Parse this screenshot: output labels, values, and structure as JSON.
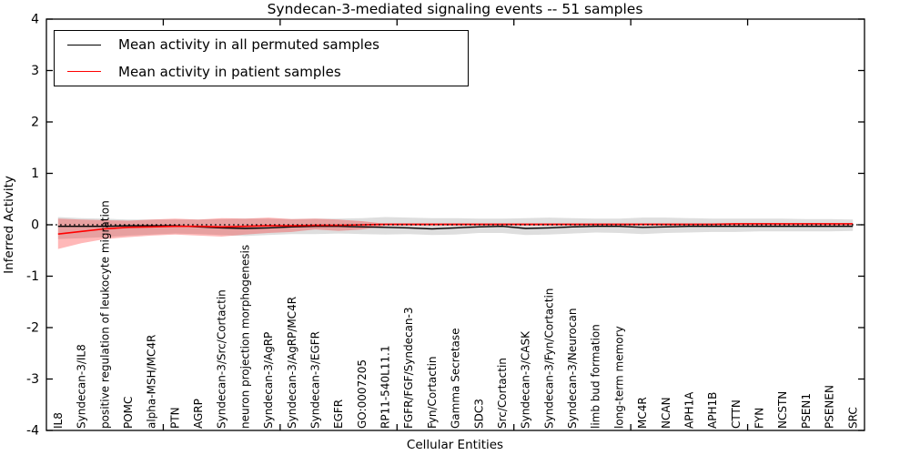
{
  "chart_data": {
    "type": "line",
    "title": "Syndecan-3-mediated signaling events -- 51 samples",
    "xlabel": "Cellular Entities",
    "ylabel": "Inferred Activity",
    "ylim": [
      -4,
      4
    ],
    "yticks": [
      -4,
      -3,
      -2,
      -1,
      0,
      1,
      2,
      3,
      4
    ],
    "xticks_unit_positions": [
      5,
      10,
      15,
      20,
      25,
      30
    ],
    "grid": false,
    "legend_position": "upper-left",
    "zero_line_style": "dotted",
    "background_color": "#ffffff",
    "categories": [
      "IL8",
      "Syndecan-3/IL8",
      "positive regulation of leukocyte migration",
      "POMC",
      "alpha-MSH/MC4R",
      "PTN",
      "AGRP",
      "Syndecan-3/Src/Cortactin",
      "neuron projection morphogenesis",
      "Syndecan-3/AgRP",
      "Syndecan-3/AgRP/MC4R",
      "Syndecan-3/EGFR",
      "EGFR",
      "GO:0007205",
      "RP11-540L11.1",
      "FGFR/FGF/Syndecan-3",
      "Fyn/Cortactin",
      "Gamma Secretase",
      "SDC3",
      "Src/Cortactin",
      "Syndecan-3/CASK",
      "Syndecan-3/Fyn/Cortactin",
      "Syndecan-3/Neurocan",
      "limb bud formation",
      "long-term memory",
      "MC4R",
      "NCAN",
      "APH1A",
      "APH1B",
      "CTTN",
      "FYN",
      "NCSTN",
      "PSEN1",
      "PSENEN",
      "SRC"
    ],
    "series": [
      {
        "name": "Mean activity in all permuted samples",
        "color": "#000000",
        "band_fill": "rgba(0,0,0,0.13)",
        "values": [
          -0.03,
          -0.03,
          -0.03,
          -0.02,
          -0.02,
          -0.02,
          -0.04,
          -0.06,
          -0.07,
          -0.06,
          -0.04,
          -0.03,
          -0.03,
          -0.04,
          -0.05,
          -0.06,
          -0.08,
          -0.06,
          -0.04,
          -0.03,
          -0.07,
          -0.06,
          -0.04,
          -0.03,
          -0.03,
          -0.05,
          -0.04,
          -0.03,
          -0.03,
          -0.03,
          -0.03,
          -0.03,
          -0.03,
          -0.03,
          -0.03
        ],
        "band_upper": [
          0.15,
          0.13,
          0.12,
          0.1,
          0.1,
          0.1,
          0.1,
          0.11,
          0.12,
          0.12,
          0.11,
          0.12,
          0.12,
          0.13,
          0.15,
          0.14,
          0.13,
          0.13,
          0.12,
          0.12,
          0.13,
          0.14,
          0.13,
          0.12,
          0.12,
          0.14,
          0.14,
          0.13,
          0.12,
          0.12,
          0.12,
          0.12,
          0.11,
          0.11,
          0.1
        ],
        "band_lower": [
          -0.28,
          -0.26,
          -0.24,
          -0.21,
          -0.19,
          -0.17,
          -0.18,
          -0.2,
          -0.22,
          -0.2,
          -0.18,
          -0.18,
          -0.17,
          -0.18,
          -0.19,
          -0.18,
          -0.2,
          -0.19,
          -0.16,
          -0.16,
          -0.2,
          -0.19,
          -0.17,
          -0.15,
          -0.16,
          -0.18,
          -0.16,
          -0.15,
          -0.14,
          -0.14,
          -0.13,
          -0.13,
          -0.13,
          -0.13,
          -0.12
        ]
      },
      {
        "name": "Mean activity in patient samples",
        "color": "#ff0000",
        "band_fill": "rgba(255,0,0,0.28)",
        "values": [
          -0.18,
          -0.13,
          -0.08,
          -0.05,
          -0.04,
          -0.03,
          -0.03,
          -0.04,
          -0.03,
          -0.02,
          -0.02,
          -0.01,
          -0.01,
          0.0,
          0.01,
          0.01,
          0.01,
          0.01,
          0.01,
          0.01,
          0.01,
          0.01,
          0.01,
          0.01,
          0.01,
          0.01,
          0.01,
          0.01,
          0.01,
          0.02,
          0.02,
          0.02,
          0.02,
          0.02,
          0.02
        ],
        "band_upper": [
          0.12,
          0.1,
          0.09,
          0.08,
          0.1,
          0.12,
          0.1,
          0.13,
          0.12,
          0.14,
          0.11,
          0.12,
          0.1,
          0.07,
          0.02,
          0.02,
          0.02,
          0.02,
          0.02,
          0.02,
          0.02,
          0.02,
          0.02,
          0.02,
          0.02,
          0.02,
          0.02,
          0.02,
          0.02,
          0.02,
          0.02,
          0.02,
          0.02,
          0.02,
          0.02
        ],
        "band_lower": [
          -0.47,
          -0.36,
          -0.28,
          -0.24,
          -0.21,
          -0.19,
          -0.21,
          -0.23,
          -0.19,
          -0.16,
          -0.14,
          -0.09,
          -0.12,
          -0.09,
          -0.02,
          -0.02,
          -0.02,
          -0.02,
          -0.02,
          -0.02,
          -0.02,
          -0.02,
          -0.02,
          -0.02,
          -0.02,
          -0.02,
          -0.02,
          -0.02,
          -0.02,
          -0.02,
          -0.02,
          -0.02,
          -0.02,
          -0.02,
          -0.02
        ]
      }
    ]
  }
}
